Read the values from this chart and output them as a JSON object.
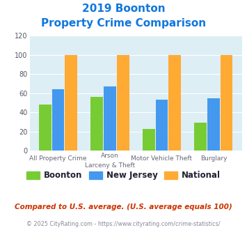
{
  "title_line1": "2019 Boonton",
  "title_line2": "Property Crime Comparison",
  "cat_labels_line1": [
    "All Property Crime",
    "Arson",
    "Motor Vehicle Theft",
    "Burglary"
  ],
  "cat_labels_line2": [
    "",
    "Larceny & Theft",
    "",
    ""
  ],
  "boonton_values": [
    48,
    56,
    23,
    29
  ],
  "nj_values": [
    64,
    67,
    53,
    55
  ],
  "national_values": [
    100,
    100,
    100,
    100
  ],
  "boonton_color": "#77cc33",
  "nj_color": "#4499ee",
  "national_color": "#ffaa33",
  "ylim": [
    0,
    120
  ],
  "yticks": [
    0,
    20,
    40,
    60,
    80,
    100,
    120
  ],
  "background_color": "#ddeef5",
  "title_color": "#1177dd",
  "legend_labels": [
    "Boonton",
    "New Jersey",
    "National"
  ],
  "footnote1": "Compared to U.S. average. (U.S. average equals 100)",
  "footnote2": "© 2025 CityRating.com - https://www.cityrating.com/crime-statistics/",
  "footnote1_color": "#cc3300",
  "footnote2_color": "#888899",
  "url_color": "#3377cc"
}
